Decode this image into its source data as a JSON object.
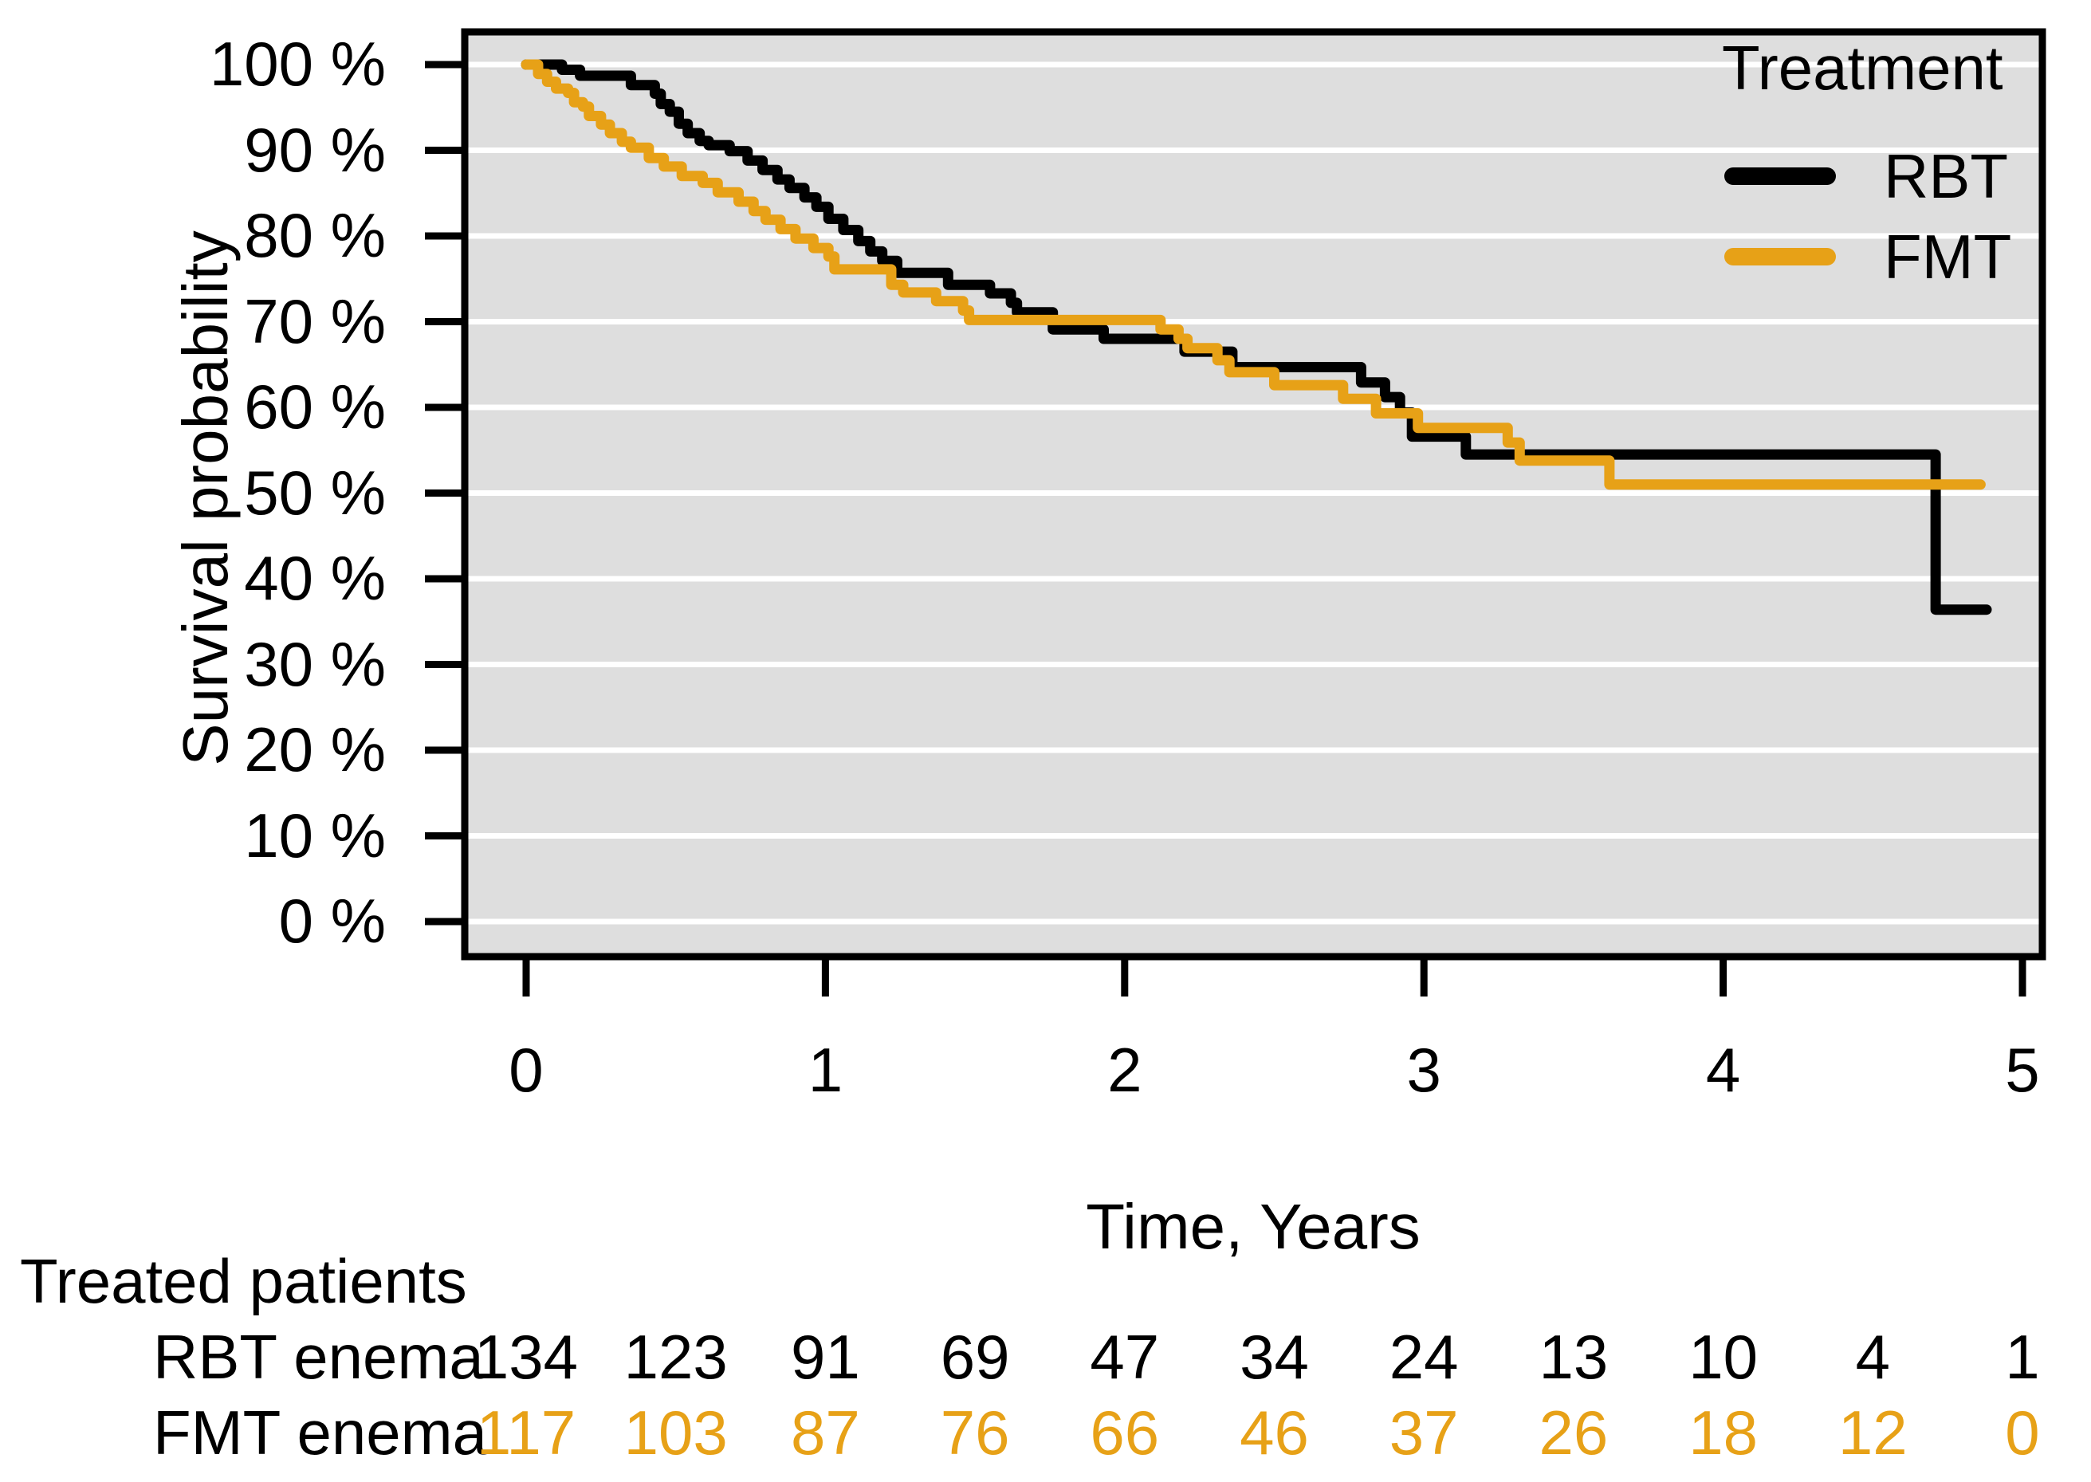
{
  "colors": {
    "rbt": "#000000",
    "fmt": "#E7A117",
    "panel_bg": "#DEDEDE",
    "gridline": "#FFFFFF",
    "axis": "#000000",
    "text": "#000000"
  },
  "legend": {
    "title": "Treatment",
    "items": [
      {
        "label": "RBT",
        "color": "#000000"
      },
      {
        "label": "FMT",
        "color": "#E7A117"
      }
    ]
  },
  "chart_data": {
    "type": "line",
    "subtype": "kaplan-meier-step",
    "title": "",
    "xlabel": "Time, Years",
    "ylabel": "Survival probability",
    "xlim": [
      0,
      5
    ],
    "ylim": [
      0,
      100
    ],
    "grid": "horizontal-white-lines-on-gray-panel",
    "legend_position": "top-right-inside",
    "x_ticks": [
      {
        "v": 0,
        "label": "0"
      },
      {
        "v": 1,
        "label": "1"
      },
      {
        "v": 2,
        "label": "2"
      },
      {
        "v": 3,
        "label": "3"
      },
      {
        "v": 4,
        "label": "4"
      },
      {
        "v": 5,
        "label": "5"
      }
    ],
    "y_ticks": [
      {
        "v": 0,
        "label": "0 %"
      },
      {
        "v": 10,
        "label": "10 %"
      },
      {
        "v": 20,
        "label": "20 %"
      },
      {
        "v": 30,
        "label": "30 %"
      },
      {
        "v": 40,
        "label": "40 %"
      },
      {
        "v": 50,
        "label": "50 %"
      },
      {
        "v": 60,
        "label": "60 %"
      },
      {
        "v": 70,
        "label": "70 %"
      },
      {
        "v": 80,
        "label": "80 %"
      },
      {
        "v": 90,
        "label": "90 %"
      },
      {
        "v": 100,
        "label": "100 %"
      }
    ],
    "series": [
      {
        "name": "RBT",
        "color": "#000000",
        "end_time": 4.88,
        "steps": [
          [
            0,
            100
          ],
          [
            0.12,
            99.4
          ],
          [
            0.18,
            98.7
          ],
          [
            0.35,
            97.6
          ],
          [
            0.43,
            96.6
          ],
          [
            0.45,
            95.4
          ],
          [
            0.48,
            94.5
          ],
          [
            0.51,
            93.1
          ],
          [
            0.54,
            92.0
          ],
          [
            0.58,
            91.1
          ],
          [
            0.61,
            90.6
          ],
          [
            0.68,
            89.9
          ],
          [
            0.74,
            88.8
          ],
          [
            0.79,
            87.7
          ],
          [
            0.84,
            86.6
          ],
          [
            0.88,
            85.6
          ],
          [
            0.93,
            84.5
          ],
          [
            0.97,
            83.4
          ],
          [
            1.01,
            82.0
          ],
          [
            1.06,
            80.7
          ],
          [
            1.11,
            79.4
          ],
          [
            1.15,
            78.2
          ],
          [
            1.19,
            77.1
          ],
          [
            1.24,
            75.7
          ],
          [
            1.41,
            74.3
          ],
          [
            1.55,
            73.3
          ],
          [
            1.62,
            72.2
          ],
          [
            1.64,
            71.1
          ],
          [
            1.76,
            69.1
          ],
          [
            1.93,
            68.0
          ],
          [
            2.2,
            66.5
          ],
          [
            2.36,
            64.7
          ],
          [
            2.79,
            62.9
          ],
          [
            2.87,
            61.2
          ],
          [
            2.92,
            59.4
          ],
          [
            2.96,
            56.6
          ],
          [
            3.14,
            54.5
          ],
          [
            4.71,
            36.4
          ]
        ]
      },
      {
        "name": "FMT",
        "color": "#E7A117",
        "end_time": 4.86,
        "steps": [
          [
            0,
            100
          ],
          [
            0.04,
            98.9
          ],
          [
            0.07,
            98.0
          ],
          [
            0.1,
            97.2
          ],
          [
            0.14,
            96.7
          ],
          [
            0.16,
            95.6
          ],
          [
            0.19,
            95.1
          ],
          [
            0.21,
            94.0
          ],
          [
            0.25,
            93.0
          ],
          [
            0.28,
            92.0
          ],
          [
            0.32,
            91.0
          ],
          [
            0.35,
            90.3
          ],
          [
            0.41,
            89.1
          ],
          [
            0.46,
            88.1
          ],
          [
            0.52,
            87.0
          ],
          [
            0.59,
            86.2
          ],
          [
            0.64,
            85.1
          ],
          [
            0.71,
            84.0
          ],
          [
            0.76,
            82.9
          ],
          [
            0.8,
            81.9
          ],
          [
            0.85,
            80.8
          ],
          [
            0.9,
            79.7
          ],
          [
            0.96,
            78.6
          ],
          [
            1.01,
            77.6
          ],
          [
            1.03,
            76.1
          ],
          [
            1.22,
            74.3
          ],
          [
            1.26,
            73.4
          ],
          [
            1.37,
            72.4
          ],
          [
            1.46,
            71.3
          ],
          [
            1.48,
            70.2
          ],
          [
            2.12,
            69.1
          ],
          [
            2.18,
            68.0
          ],
          [
            2.21,
            66.9
          ],
          [
            2.31,
            65.5
          ],
          [
            2.35,
            64.1
          ],
          [
            2.5,
            62.6
          ],
          [
            2.73,
            61.0
          ],
          [
            2.84,
            59.3
          ],
          [
            2.98,
            57.6
          ],
          [
            3.28,
            55.9
          ],
          [
            3.32,
            53.8
          ],
          [
            3.62,
            51.0
          ]
        ]
      }
    ]
  },
  "risk_table": {
    "title": "Treated patients",
    "time_points": [
      0,
      0.5,
      1,
      1.5,
      2,
      2.5,
      3,
      3.5,
      4,
      4.5,
      5
    ],
    "rows": [
      {
        "label": "RBT enema",
        "color": "#000000",
        "values": [
          "134",
          "123",
          "91",
          "69",
          "47",
          "34",
          "24",
          "13",
          "10",
          "4",
          "1"
        ]
      },
      {
        "label": "FMT enema",
        "color": "#E7A117",
        "values": [
          "117",
          "103",
          "87",
          "76",
          "66",
          "46",
          "37",
          "26",
          "18",
          "12",
          "0"
        ]
      }
    ]
  }
}
